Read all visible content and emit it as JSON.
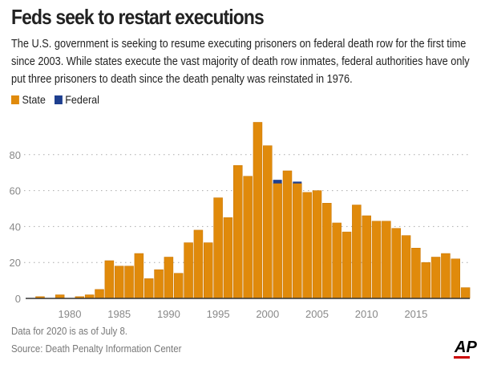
{
  "title": "Feds seek to restart executions",
  "subtitle": "The U.S. government is seeking to resume executing prisoners on federal death row for the first time since 2003. While states execute the vast majority of death row inmates, federal authorities have only put three prisoners to death since the death penalty was reinstated in 1976.",
  "note": "Data for 2020 is as of July 8.",
  "source": "Source: Death Penalty Information Center",
  "logo": "AP",
  "chart_data": {
    "type": "bar",
    "stacked": true,
    "categories": [
      1976,
      1977,
      1978,
      1979,
      1980,
      1981,
      1982,
      1983,
      1984,
      1985,
      1986,
      1987,
      1988,
      1989,
      1990,
      1991,
      1992,
      1993,
      1994,
      1995,
      1996,
      1997,
      1998,
      1999,
      2000,
      2001,
      2002,
      2003,
      2004,
      2005,
      2006,
      2007,
      2008,
      2009,
      2010,
      2011,
      2012,
      2013,
      2014,
      2015,
      2016,
      2017,
      2018,
      2019,
      2020
    ],
    "series": [
      {
        "name": "State",
        "color": "#e08a0b",
        "values": [
          0,
          1,
          0,
          2,
          0,
          1,
          2,
          5,
          21,
          18,
          18,
          25,
          11,
          16,
          23,
          14,
          31,
          38,
          31,
          56,
          45,
          74,
          68,
          98,
          85,
          64,
          71,
          64,
          59,
          60,
          53,
          42,
          37,
          52,
          46,
          43,
          43,
          39,
          35,
          28,
          20,
          23,
          25,
          22,
          6
        ]
      },
      {
        "name": "Federal",
        "color": "#1e3f8f",
        "values": [
          0,
          0,
          0,
          0,
          0,
          0,
          0,
          0,
          0,
          0,
          0,
          0,
          0,
          0,
          0,
          0,
          0,
          0,
          0,
          0,
          0,
          0,
          0,
          0,
          0,
          2,
          0,
          1,
          0,
          0,
          0,
          0,
          0,
          0,
          0,
          0,
          0,
          0,
          0,
          0,
          0,
          0,
          0,
          0,
          0
        ]
      }
    ],
    "yticks": [
      0,
      20,
      40,
      60,
      80
    ],
    "xticks": [
      1980,
      1985,
      1990,
      1995,
      2000,
      2005,
      2010,
      2015
    ],
    "ylim": [
      0,
      100
    ],
    "grid": "horizontal dotted",
    "legend": "top-left"
  }
}
